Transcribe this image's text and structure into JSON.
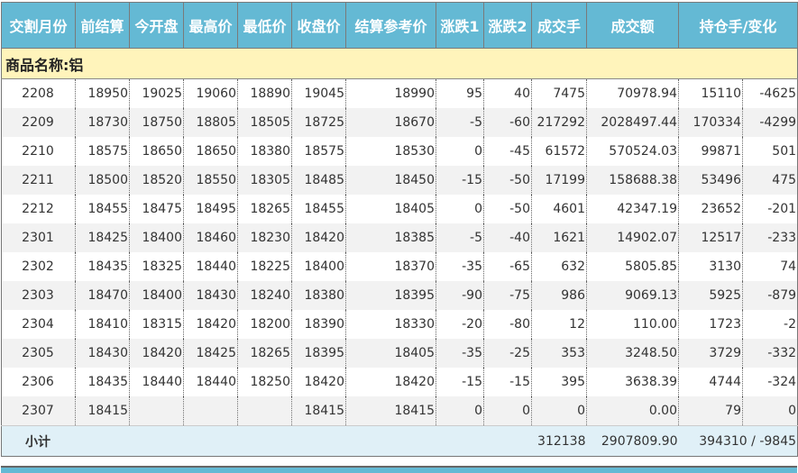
{
  "headers": [
    "交割月份",
    "前结算",
    "今开盘",
    "最高价",
    "最低价",
    "收盘价",
    "结算参考价",
    "涨跌1",
    "涨跌2",
    "成交手",
    "成交额",
    "持仓手/变化"
  ],
  "group_label": "商品名称:铝",
  "rows": [
    [
      "2208",
      "18950",
      "19025",
      "19060",
      "18890",
      "19045",
      "18990",
      "95",
      "40",
      "7475",
      "70978.94",
      "15110",
      "-4625"
    ],
    [
      "2209",
      "18730",
      "18750",
      "18805",
      "18505",
      "18725",
      "18670",
      "-5",
      "-60",
      "217292",
      "2028497.44",
      "170334",
      "-4299"
    ],
    [
      "2210",
      "18575",
      "18650",
      "18650",
      "18380",
      "18575",
      "18530",
      "0",
      "-45",
      "61572",
      "570524.03",
      "99871",
      "501"
    ],
    [
      "2211",
      "18500",
      "18520",
      "18550",
      "18305",
      "18485",
      "18450",
      "-15",
      "-50",
      "17199",
      "158688.38",
      "53496",
      "475"
    ],
    [
      "2212",
      "18455",
      "18475",
      "18495",
      "18265",
      "18455",
      "18405",
      "0",
      "-50",
      "4601",
      "42347.19",
      "23652",
      "-201"
    ],
    [
      "2301",
      "18425",
      "18400",
      "18460",
      "18230",
      "18420",
      "18385",
      "-5",
      "-40",
      "1621",
      "14902.07",
      "12517",
      "-233"
    ],
    [
      "2302",
      "18435",
      "18325",
      "18440",
      "18225",
      "18400",
      "18370",
      "-35",
      "-65",
      "632",
      "5805.85",
      "3130",
      "74"
    ],
    [
      "2303",
      "18470",
      "18400",
      "18430",
      "18240",
      "18380",
      "18395",
      "-90",
      "-75",
      "986",
      "9069.13",
      "5925",
      "-879"
    ],
    [
      "2304",
      "18410",
      "18315",
      "18420",
      "18200",
      "18390",
      "18330",
      "-20",
      "-80",
      "12",
      "110.00",
      "1723",
      "-2"
    ],
    [
      "2305",
      "18430",
      "18420",
      "18425",
      "18265",
      "18395",
      "18405",
      "-35",
      "-25",
      "353",
      "3248.50",
      "3729",
      "-332"
    ],
    [
      "2306",
      "18435",
      "18440",
      "18440",
      "18250",
      "18420",
      "18420",
      "-15",
      "-15",
      "395",
      "3638.39",
      "4744",
      "-324"
    ],
    [
      "2307",
      "18415",
      "",
      "",
      "",
      "18415",
      "18415",
      "0",
      "0",
      "0",
      "0.00",
      "79",
      "0"
    ]
  ],
  "subtotal": {
    "label": "小计",
    "volume": "312138",
    "turnover": "2907809.90",
    "open_interest": "394310 / -9845"
  }
}
